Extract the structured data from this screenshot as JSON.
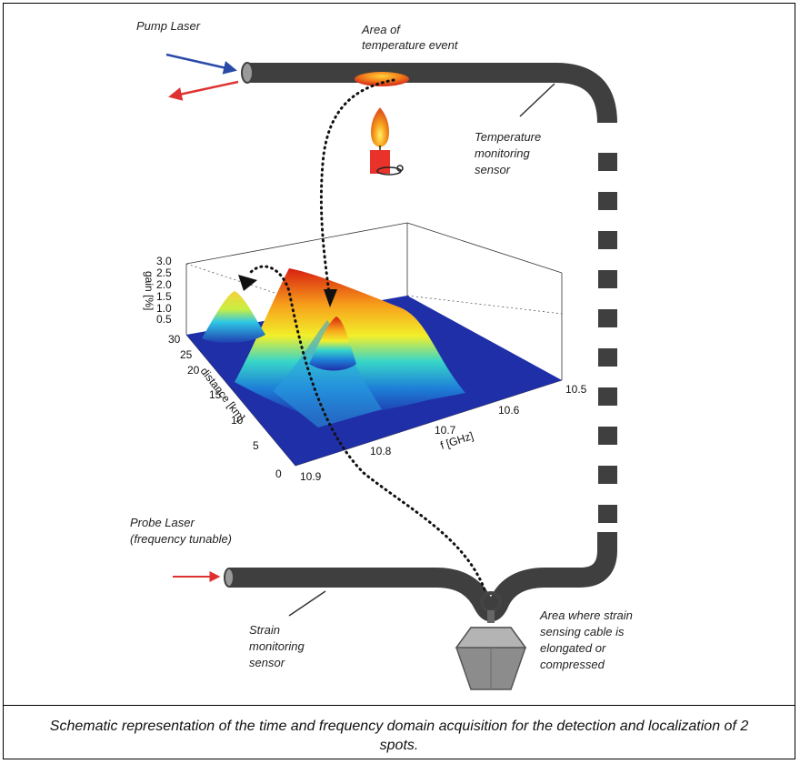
{
  "labels": {
    "pump_laser": "Pump Laser",
    "temperature_event": [
      "Area of",
      "temperature event"
    ],
    "temperature_sensor": [
      "Temperature",
      "monitoring",
      "sensor"
    ],
    "probe_laser": [
      "Probe Laser",
      "(frequency tunable)"
    ],
    "strain_sensor": [
      "Strain",
      "monitoring",
      "sensor"
    ],
    "strain_area": [
      "Area where strain",
      "sensing cable is",
      "elongated or",
      "compressed"
    ]
  },
  "plot": {
    "gain_axis_label": "gain [%]",
    "gain_ticks": [
      "0.5",
      "1.0",
      "1.5",
      "2.0",
      "2.5",
      "3.0"
    ],
    "distance_axis_label": "distance [km]",
    "distance_ticks": [
      "0",
      "5",
      "10",
      "15",
      "20",
      "25",
      "30"
    ],
    "freq_axis_label": "f [GHz]",
    "freq_ticks": [
      "10.5",
      "10.6",
      "10.7",
      "10.8",
      "10.9"
    ]
  },
  "caption": "Schematic representation of the time and frequency domain acquisition for the detection and localization of 2 spots.",
  "colors": {
    "cable": "#3f3f3f",
    "pump_arrow": "#2a4aa8",
    "return_arrow": "#e03030",
    "probe_arrow": "#e03030",
    "surface_low": "#1f2fa8",
    "surface_high": "#d81e10"
  }
}
